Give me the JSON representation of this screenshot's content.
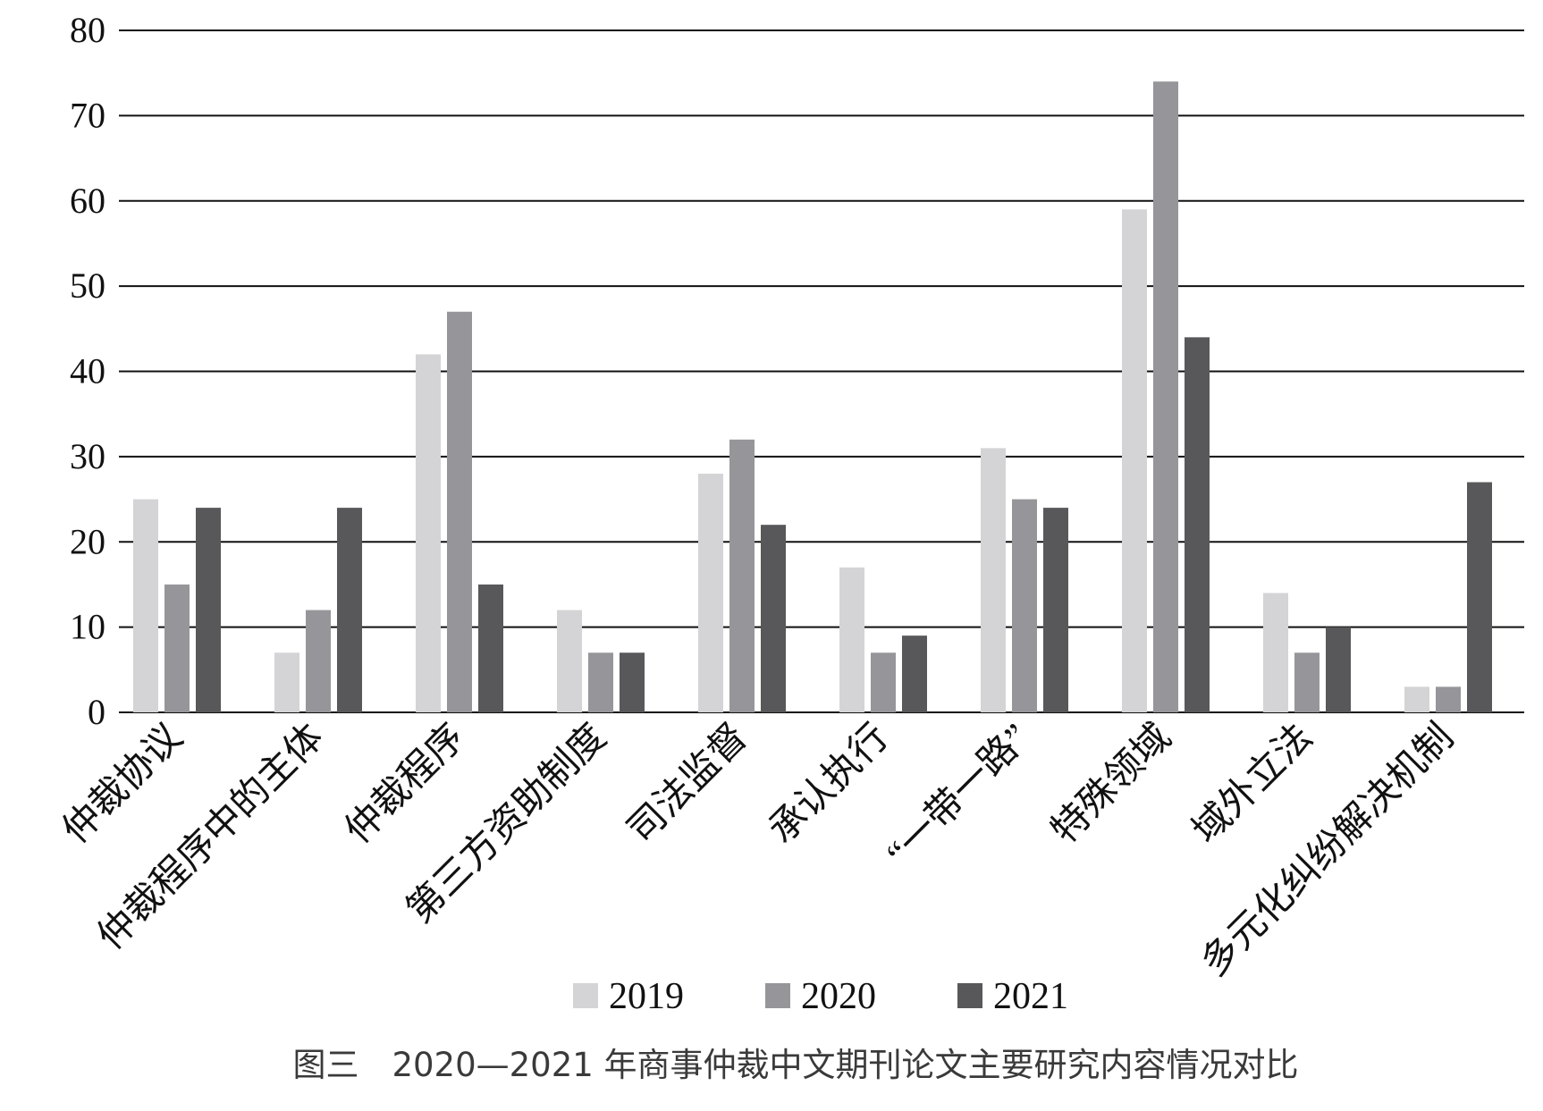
{
  "chart_data": {
    "type": "bar",
    "categories": [
      "仲裁协议",
      "仲裁程序中的主体",
      "仲裁程序",
      "第三方资助制度",
      "司法监督",
      "承认执行",
      "“一带一路”",
      "特殊领域",
      "域外立法",
      "多元化纠纷解决机制"
    ],
    "series": [
      {
        "name": "2019",
        "color": "#d4d4d6",
        "values": [
          25,
          7,
          42,
          12,
          28,
          17,
          31,
          59,
          14,
          3
        ]
      },
      {
        "name": "2020",
        "color": "#96969a",
        "values": [
          15,
          12,
          47,
          7,
          32,
          7,
          25,
          74,
          7,
          3
        ]
      },
      {
        "name": "2021",
        "color": "#58585b",
        "values": [
          24,
          24,
          15,
          7,
          22,
          9,
          24,
          44,
          10,
          27
        ]
      }
    ],
    "ylim": [
      0,
      80
    ],
    "yticks": [
      0,
      10,
      20,
      30,
      40,
      50,
      60,
      70,
      80
    ],
    "grid": true,
    "legend": "bottom-center",
    "caption": "图三　2020—2021 年商事仲裁中文期刊论文主要研究内容情况对比"
  }
}
